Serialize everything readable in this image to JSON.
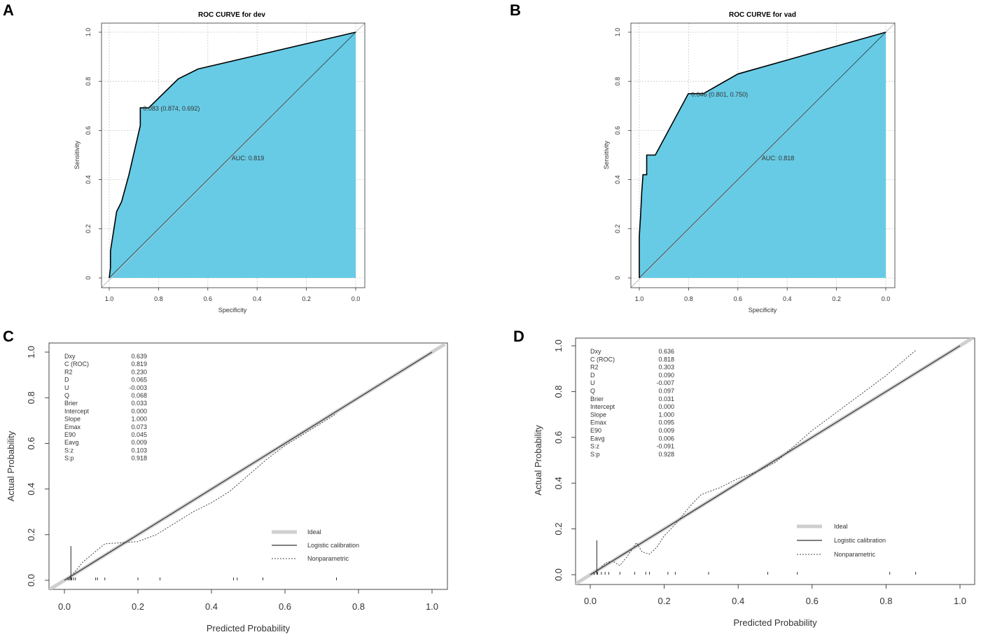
{
  "chart_data": [
    {
      "panel": "A",
      "type": "line",
      "subtype": "roc",
      "title": "ROC CURVE for dev",
      "xlabel": "Specificity",
      "ylabel": "Sensitivity",
      "xlim": [
        1.0,
        0.0
      ],
      "ylim": [
        0,
        1
      ],
      "x_ticks": [
        "1.0",
        "0.8",
        "0.6",
        "0.4",
        "0.2",
        "0.0"
      ],
      "y_ticks": [
        "0",
        "0.2",
        "0.4",
        "0.6",
        "0.8",
        "1.0"
      ],
      "fill_color": "#67cbe5",
      "x": [
        1.0,
        0.995,
        0.995,
        0.97,
        0.95,
        0.92,
        0.874,
        0.874,
        0.84,
        0.72,
        0.64,
        0.0
      ],
      "y": [
        0.0,
        0.04,
        0.11,
        0.27,
        0.31,
        0.42,
        0.62,
        0.692,
        0.692,
        0.81,
        0.85,
        1.0
      ],
      "threshold_label": "0.083 (0.874, 0.692)",
      "auc_label": "AUC: 0.819"
    },
    {
      "panel": "B",
      "type": "line",
      "subtype": "roc",
      "title": "ROC CURVE for vad",
      "xlabel": "Specificity",
      "ylabel": "Sensitivity",
      "xlim": [
        1.0,
        0.0
      ],
      "ylim": [
        0,
        1
      ],
      "x_ticks": [
        "1.0",
        "0.8",
        "0.6",
        "0.4",
        "0.2",
        "0.0"
      ],
      "y_ticks": [
        "0",
        "0.2",
        "0.4",
        "0.6",
        "0.8",
        "1.0"
      ],
      "fill_color": "#67cbe5",
      "x": [
        1.0,
        1.0,
        0.995,
        0.99,
        0.985,
        0.97,
        0.97,
        0.955,
        0.935,
        0.801,
        0.74,
        0.6,
        0.0
      ],
      "y": [
        0.0,
        0.17,
        0.25,
        0.35,
        0.42,
        0.42,
        0.5,
        0.5,
        0.5,
        0.75,
        0.75,
        0.83,
        1.0
      ],
      "threshold_label": "0.046 (0.801, 0.750)",
      "auc_label": "AUC: 0.818"
    },
    {
      "panel": "C",
      "type": "line",
      "subtype": "calibration",
      "xlabel": "Predicted Probability",
      "ylabel": "Actual Probability",
      "xlim": [
        0,
        1
      ],
      "ylim": [
        0,
        1
      ],
      "x_ticks": [
        "0.0",
        "0.2",
        "0.4",
        "0.6",
        "0.8",
        "1.0"
      ],
      "y_ticks": [
        "0.0",
        "0.2",
        "0.4",
        "0.6",
        "0.8",
        "1.0"
      ],
      "stats": [
        [
          "Dxy",
          "0.639"
        ],
        [
          "C (ROC)",
          "0.819"
        ],
        [
          "R2",
          "0.230"
        ],
        [
          "D",
          "0.065"
        ],
        [
          "U",
          "-0.003"
        ],
        [
          "Q",
          "0.068"
        ],
        [
          "Brier",
          "0.033"
        ],
        [
          "Intercept",
          "0.000"
        ],
        [
          "Slope",
          "1.000"
        ],
        [
          "Emax",
          "0.073"
        ],
        [
          "E90",
          "0.045"
        ],
        [
          "Eavg",
          "0.009"
        ],
        [
          "S:z",
          "0.103"
        ],
        [
          "S:p",
          "0.918"
        ]
      ],
      "legend": [
        "Ideal",
        "Logistic calibration",
        "Nonparametric"
      ],
      "nonparametric": {
        "x": [
          0.01,
          0.05,
          0.11,
          0.16,
          0.2,
          0.25,
          0.3,
          0.35,
          0.4,
          0.45,
          0.5,
          0.55,
          0.6,
          0.65,
          0.7,
          0.74
        ],
        "y": [
          0.0,
          0.08,
          0.16,
          0.165,
          0.17,
          0.2,
          0.25,
          0.3,
          0.34,
          0.39,
          0.46,
          0.53,
          0.59,
          0.64,
          0.69,
          0.73
        ]
      },
      "rug_x": [
        0.01,
        0.015,
        0.02,
        0.025,
        0.03,
        0.085,
        0.09,
        0.11,
        0.2,
        0.26,
        0.46,
        0.47,
        0.54,
        0.74
      ],
      "spike": {
        "x": 0.01,
        "height": 0.15
      }
    },
    {
      "panel": "D",
      "type": "line",
      "subtype": "calibration",
      "xlabel": "Predicted Probability",
      "ylabel": "Actual Probability",
      "xlim": [
        0,
        1
      ],
      "ylim": [
        0,
        1
      ],
      "x_ticks": [
        "0.0",
        "0.2",
        "0.4",
        "0.6",
        "0.8",
        "1.0"
      ],
      "y_ticks": [
        "0.0",
        "0.2",
        "0.4",
        "0.6",
        "0.8",
        "1.0"
      ],
      "stats": [
        [
          "Dxy",
          "0.636"
        ],
        [
          "C (ROC)",
          "0.818"
        ],
        [
          "R2",
          "0.303"
        ],
        [
          "D",
          "0.090"
        ],
        [
          "U",
          "-0.007"
        ],
        [
          "Q",
          "0.097"
        ],
        [
          "Brier",
          "0.031"
        ],
        [
          "Intercept",
          "0.000"
        ],
        [
          "Slope",
          "1.000"
        ],
        [
          "Emax",
          "0.095"
        ],
        [
          "E90",
          "0.009"
        ],
        [
          "Eavg",
          "0.006"
        ],
        [
          "S:z",
          "-0.091"
        ],
        [
          "S:p",
          "0.928"
        ]
      ],
      "legend": [
        "Ideal",
        "Logistic calibration",
        "Nonparametric"
      ],
      "nonparametric": {
        "x": [
          0.01,
          0.04,
          0.06,
          0.08,
          0.1,
          0.125,
          0.14,
          0.16,
          0.18,
          0.2,
          0.23,
          0.27,
          0.3,
          0.35,
          0.4,
          0.45,
          0.5,
          0.55,
          0.6,
          0.7,
          0.8,
          0.88
        ],
        "y": [
          0.0,
          0.05,
          0.06,
          0.04,
          0.08,
          0.14,
          0.1,
          0.09,
          0.12,
          0.17,
          0.22,
          0.3,
          0.35,
          0.38,
          0.42,
          0.45,
          0.49,
          0.56,
          0.63,
          0.75,
          0.87,
          0.98
        ]
      },
      "rug_x": [
        0.01,
        0.02,
        0.03,
        0.04,
        0.05,
        0.08,
        0.12,
        0.15,
        0.16,
        0.21,
        0.23,
        0.32,
        0.48,
        0.56,
        0.81,
        0.88
      ],
      "spike": {
        "x": 0.01,
        "height": 0.15
      }
    }
  ]
}
